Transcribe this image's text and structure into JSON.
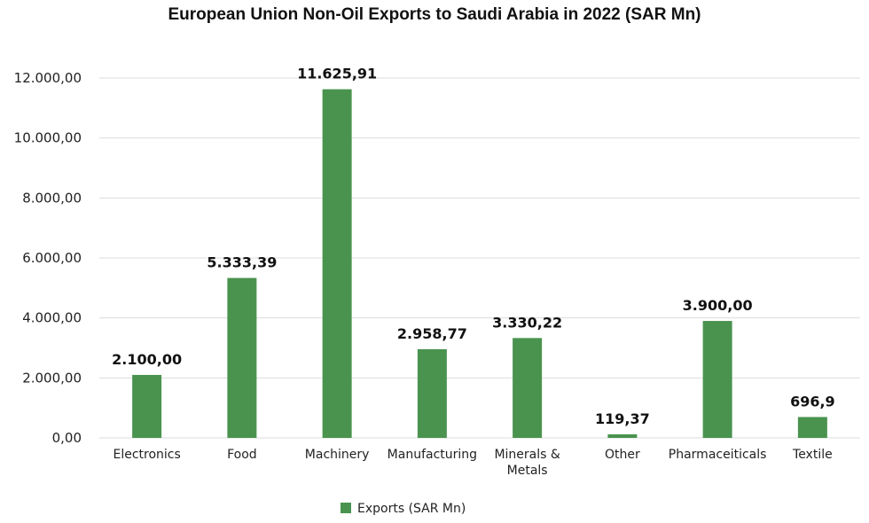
{
  "chart_data": {
    "type": "bar",
    "title": "European Union Non-Oil Exports to Saudi Arabia in 2022 (SAR Mn)",
    "xlabel": "",
    "ylabel": "",
    "categories": [
      "Electronics",
      "Food",
      "Machinery",
      "Manufacturing",
      "Minerals & Metals",
      "Other",
      "Pharmaceiticals",
      "Textile"
    ],
    "category_lines": [
      [
        "Electronics"
      ],
      [
        "Food"
      ],
      [
        "Machinery"
      ],
      [
        "Manufacturing"
      ],
      [
        "Minerals &",
        "Metals"
      ],
      [
        "Other"
      ],
      [
        "Pharmaceiticals"
      ],
      [
        "Textile"
      ]
    ],
    "series": [
      {
        "name": "Exports (SAR Mn)",
        "values": [
          2100.0,
          5333.39,
          11625.91,
          2958.77,
          3330.22,
          119.37,
          3900.0,
          696.9
        ],
        "labels": [
          "2.100,00",
          "5.333,39",
          "11.625,91",
          "2.958,77",
          "3.330,22",
          "119,37",
          "3.900,00",
          "696,9"
        ],
        "color": "#4a934f"
      }
    ],
    "ylim": [
      0,
      12000
    ],
    "yticks": [
      0,
      2000,
      4000,
      6000,
      8000,
      10000,
      12000
    ],
    "ytick_labels": [
      "0,00",
      "2.000,00",
      "4.000,00",
      "6.000,00",
      "8.000,00",
      "10.000,00",
      "12.000,00"
    ],
    "grid": true,
    "legend": "bottom-center"
  }
}
